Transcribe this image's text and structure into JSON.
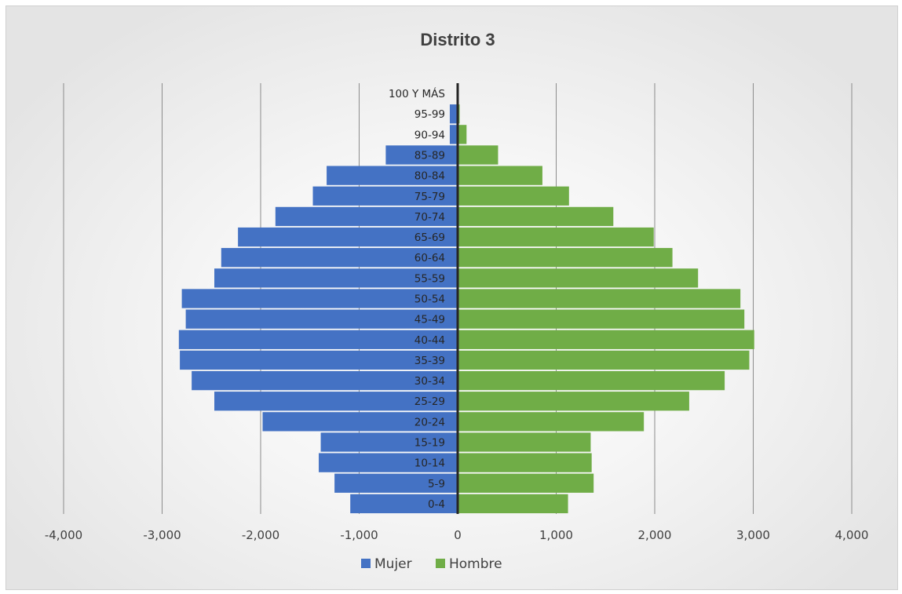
{
  "chart_data": {
    "type": "bar",
    "orientation": "horizontal",
    "title": "Distrito 3",
    "categories": [
      "0-4",
      "5-9",
      "10-14",
      "15-19",
      "20-24",
      "25-29",
      "30-34",
      "35-39",
      "40-44",
      "45-49",
      "50-54",
      "55-59",
      "60-64",
      "65-69",
      "70-74",
      "75-79",
      "80-84",
      "85-89",
      "90-94",
      "95-99",
      "100 Y MÁS"
    ],
    "series": [
      {
        "name": "Mujer",
        "color": "#4472c4",
        "values": [
          -1090,
          -1250,
          -1410,
          -1390,
          -1980,
          -2470,
          -2700,
          -2820,
          -2830,
          -2760,
          -2800,
          -2470,
          -2400,
          -2230,
          -1850,
          -1470,
          -1330,
          -730,
          -80,
          -80,
          0
        ]
      },
      {
        "name": "Hombre",
        "color": "#70ad47",
        "values": [
          1120,
          1380,
          1360,
          1350,
          1890,
          2350,
          2710,
          2960,
          3010,
          2910,
          2870,
          2440,
          2180,
          1990,
          1580,
          1130,
          860,
          410,
          90,
          20,
          0
        ]
      }
    ],
    "xlim": [
      -4000,
      4000
    ],
    "x_ticks": [
      "-4,000",
      "-3,000",
      "-2,000",
      "-1,000",
      "0",
      "1,000",
      "2,000",
      "3,000",
      "4,000"
    ],
    "x_tick_values": [
      -4000,
      -3000,
      -2000,
      -1000,
      0,
      1000,
      2000,
      3000,
      4000
    ],
    "grid": "vertical",
    "legend_position": "bottom"
  }
}
